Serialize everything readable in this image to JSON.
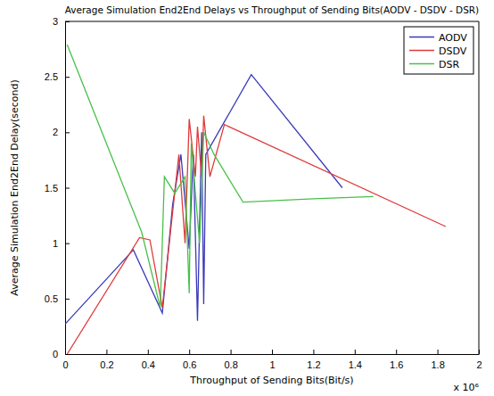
{
  "chart_data": {
    "type": "line",
    "title": "Average Simulation End2End Delays vs Throughput of Sending Bits(AODV - DSDV - DSR)",
    "x_label": "Throughput of Sending Bits(Bit/s)",
    "y_label": "Average Simulation End2End Delay(second)",
    "annotations": [
      "x 10⁶"
    ],
    "xlim": [
      0,
      2
    ],
    "xticks": [
      0,
      0.2,
      0.4,
      0.6,
      0.8,
      1,
      1.2,
      1.4,
      1.6,
      1.8,
      2
    ],
    "ylim": [
      0,
      3
    ],
    "yticks": [
      0,
      0.5,
      1,
      1.5,
      2,
      2.5,
      3
    ],
    "legend": "northeast",
    "series": [
      {
        "name": "AODV",
        "color": "#3a3ab8",
        "x": [
          0,
          0.33,
          0.47,
          0.52,
          0.56,
          0.6,
          0.62,
          0.64,
          0.66,
          0.67,
          0.68,
          0.9,
          1.34
        ],
        "values": [
          0.27,
          0.94,
          0.37,
          1.35,
          1.8,
          0.95,
          1.8,
          0.3,
          2.0,
          0.45,
          1.8,
          2.52,
          1.5
        ]
      },
      {
        "name": "DSDV",
        "color": "#e03a3a",
        "x": [
          0.01,
          0.36,
          0.41,
          0.47,
          0.55,
          0.58,
          0.6,
          0.63,
          0.64,
          0.66,
          0.67,
          0.7,
          0.77,
          1.84
        ],
        "values": [
          0.0,
          1.05,
          1.03,
          0.42,
          1.8,
          1.0,
          2.12,
          1.6,
          2.05,
          1.6,
          2.15,
          1.6,
          2.07,
          1.15
        ]
      },
      {
        "name": "DSR",
        "color": "#48c048",
        "x": [
          0.01,
          0.37,
          0.46,
          0.48,
          0.53,
          0.58,
          0.6,
          0.61,
          0.65,
          0.67,
          0.72,
          0.86,
          1.2,
          1.49
        ],
        "values": [
          2.79,
          1.1,
          0.42,
          1.6,
          1.45,
          1.6,
          0.55,
          1.9,
          1.0,
          2.0,
          1.8,
          1.37,
          1.4,
          1.42
        ]
      }
    ]
  }
}
